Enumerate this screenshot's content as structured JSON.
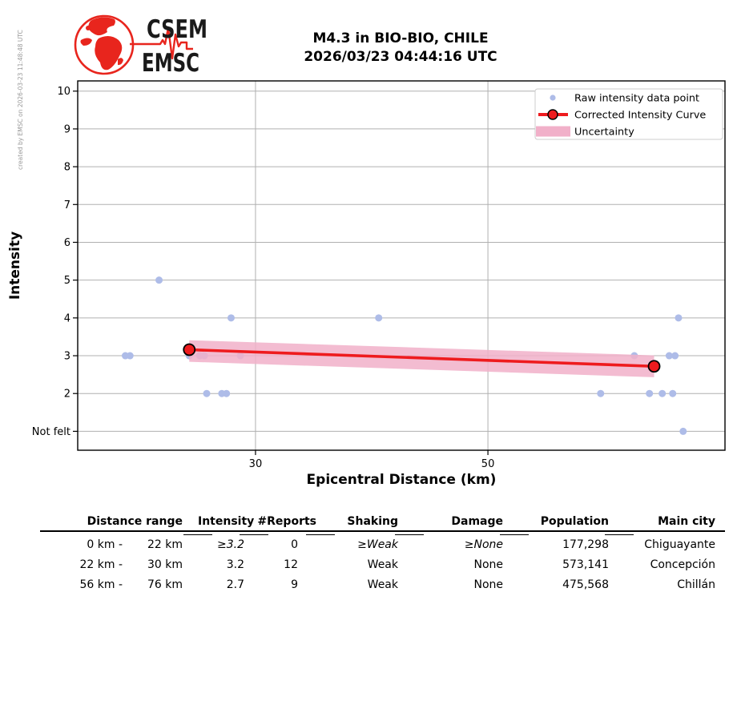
{
  "meta": {
    "created_by": "created by EMSC on 2026-03-23 11:48:48 UTC"
  },
  "logo": {
    "line1": "CSEM",
    "line2": "EMSC"
  },
  "header": {
    "title_line1": "M4.3 in BIO-BIO, CHILE",
    "title_line2": "2026/03/23 04:44:16 UTC"
  },
  "chart_data": {
    "type": "scatter",
    "xlabel": "Epicentral Distance (km)",
    "ylabel": "Intensity",
    "xlim": [
      14.7,
      70.4
    ],
    "ylim": [
      0.5,
      10.27
    ],
    "x_ticks": [
      30,
      50
    ],
    "y_ticks": [
      {
        "value": 1,
        "label": "Not felt"
      },
      {
        "value": 2,
        "label": "2"
      },
      {
        "value": 3,
        "label": "3"
      },
      {
        "value": 4,
        "label": "4"
      },
      {
        "value": 5,
        "label": "5"
      },
      {
        "value": 6,
        "label": "6"
      },
      {
        "value": 7,
        "label": "7"
      },
      {
        "value": 8,
        "label": "8"
      },
      {
        "value": 9,
        "label": "9"
      },
      {
        "value": 10,
        "label": "10"
      }
    ],
    "grid": true,
    "legend": {
      "position": "upper right",
      "entries": [
        {
          "marker": "dot",
          "label": "Raw intensity data point"
        },
        {
          "marker": "line-circle",
          "label": "Corrected Intensity Curve"
        },
        {
          "marker": "band",
          "label": "Uncertainty"
        }
      ]
    },
    "series": [
      {
        "name": "Raw intensity data point",
        "type": "scatter",
        "points": [
          [
            21.7,
            5
          ],
          [
            27.9,
            4
          ],
          [
            40.6,
            4
          ],
          [
            66.4,
            4
          ],
          [
            18.8,
            3
          ],
          [
            19.2,
            3
          ],
          [
            24.3,
            3
          ],
          [
            25.2,
            3
          ],
          [
            25.6,
            3
          ],
          [
            28.7,
            3
          ],
          [
            62.6,
            3
          ],
          [
            65.6,
            3
          ],
          [
            66.1,
            3
          ],
          [
            25.8,
            2
          ],
          [
            27.1,
            2
          ],
          [
            27.5,
            2
          ],
          [
            59.7,
            2
          ],
          [
            63.9,
            2
          ],
          [
            65.0,
            2
          ],
          [
            65.9,
            2
          ],
          [
            66.8,
            1
          ]
        ]
      },
      {
        "name": "Corrected Intensity Curve",
        "type": "line",
        "x": [
          24.3,
          64.3
        ],
        "y": [
          3.16,
          2.72
        ]
      },
      {
        "name": "Uncertainty",
        "type": "band",
        "x": [
          24.3,
          64.3
        ],
        "upper": [
          3.41,
          3.01
        ],
        "lower": [
          2.84,
          2.43
        ]
      }
    ],
    "colors": {
      "raw_point": "#aebce8",
      "curve": "#ee1b1e",
      "band": "#f1b0c9",
      "grid": "#b0b0b0",
      "frame": "#000000"
    }
  },
  "table": {
    "headers": [
      "Distance range",
      "Intensity",
      "#Reports",
      "Shaking",
      "Damage",
      "Population",
      "Main city"
    ],
    "rows": [
      {
        "range_from": "0 km -",
        "range_to": "22 km",
        "intensity": "≥3.2",
        "reports": "0",
        "shaking": "≥Weak",
        "damage": "≥None",
        "population": "177,298",
        "city": "Chiguayante",
        "extrapolated": true
      },
      {
        "range_from": "22 km -",
        "range_to": "30 km",
        "intensity": "3.2",
        "reports": "12",
        "shaking": "Weak",
        "damage": "None",
        "population": "573,141",
        "city": "Concepción",
        "extrapolated": false
      },
      {
        "range_from": "56 km -",
        "range_to": "76 km",
        "intensity": "2.7",
        "reports": "9",
        "shaking": "Weak",
        "damage": "None",
        "population": "475,568",
        "city": "Chillán",
        "extrapolated": false
      }
    ]
  }
}
